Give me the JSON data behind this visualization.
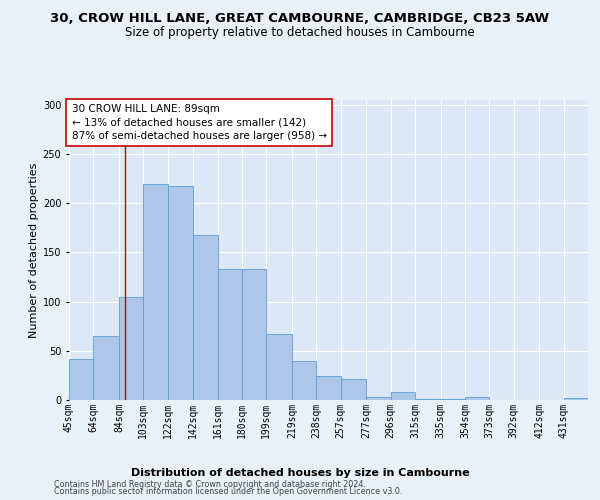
{
  "title_line1": "30, CROW HILL LANE, GREAT CAMBOURNE, CAMBRIDGE, CB23 5AW",
  "title_line2": "Size of property relative to detached houses in Cambourne",
  "xlabel": "Distribution of detached houses by size in Cambourne",
  "ylabel": "Number of detached properties",
  "footer_line1": "Contains HM Land Registry data © Crown copyright and database right 2024.",
  "footer_line2": "Contains public sector information licensed under the Open Government Licence v3.0.",
  "categories": [
    "45sqm",
    "64sqm",
    "84sqm",
    "103sqm",
    "122sqm",
    "142sqm",
    "161sqm",
    "180sqm",
    "199sqm",
    "219sqm",
    "238sqm",
    "257sqm",
    "277sqm",
    "296sqm",
    "315sqm",
    "335sqm",
    "354sqm",
    "373sqm",
    "392sqm",
    "412sqm",
    "431sqm"
  ],
  "values": [
    42,
    65,
    105,
    220,
    218,
    168,
    133,
    133,
    67,
    40,
    24,
    21,
    3,
    8,
    1,
    1,
    3,
    0,
    0,
    0,
    2
  ],
  "bar_color": "#aec6e8",
  "bar_edge_color": "#5a9fd4",
  "property_line_x": 89,
  "bin_edges": [
    45,
    64,
    84,
    103,
    122,
    142,
    161,
    180,
    199,
    219,
    238,
    257,
    277,
    296,
    315,
    335,
    354,
    373,
    392,
    412,
    431,
    450
  ],
  "annotation_text": "30 CROW HILL LANE: 89sqm\n← 13% of detached houses are smaller (142)\n87% of semi-detached houses are larger (958) →",
  "vline_color": "#cc0000",
  "annotation_box_edge_color": "#cc0000",
  "ylim": [
    0,
    305
  ],
  "bg_color": "#e8f0f8",
  "plot_bg_color": "#dce8f5",
  "grid_color": "#ffffff",
  "title_fontsize": 9.5,
  "subtitle_fontsize": 8.5,
  "tick_fontsize": 7,
  "ylabel_fontsize": 8,
  "xlabel_fontsize": 8,
  "annotation_fontsize": 7.5,
  "footer_fontsize": 5.8
}
